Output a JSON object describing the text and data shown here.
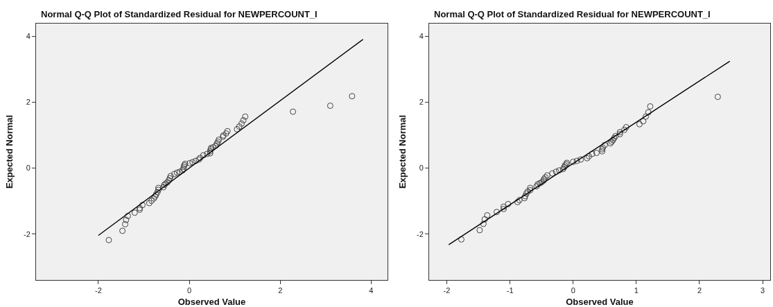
{
  "chart_data": [
    {
      "type": "scatter",
      "title": "Normal Q-Q Plot of Standardized Residual for NEWPERCOUNT_I",
      "xlabel": "Observed Value",
      "ylabel": "Expected Normal",
      "xlim": [
        -3.37,
        4.36
      ],
      "ylim": [
        -3.39,
        4.38
      ],
      "xticks": [
        -2,
        0,
        2,
        4
      ],
      "yticks": [
        -2,
        0,
        2,
        4
      ],
      "grid": false,
      "series": [
        {
          "marker": "circle",
          "color": "#444444",
          "x": [
            -1.77,
            -1.47,
            -1.41,
            -1.39,
            -1.35,
            -1.2,
            -1.09,
            -1.09,
            -1.03,
            -0.88,
            -0.83,
            -0.78,
            -0.75,
            -0.73,
            -0.7,
            -0.68,
            -0.68,
            -0.57,
            -0.55,
            -0.52,
            -0.48,
            -0.45,
            -0.43,
            -0.41,
            -0.33,
            -0.27,
            -0.21,
            -0.15,
            -0.13,
            -0.12,
            -0.11,
            -0.09,
            0.01,
            0.07,
            0.14,
            0.21,
            0.24,
            0.31,
            0.39,
            0.46,
            0.46,
            0.47,
            0.48,
            0.52,
            0.58,
            0.61,
            0.63,
            0.65,
            0.74,
            0.75,
            0.81,
            0.84,
            1.05,
            1.1,
            1.15,
            1.19,
            1.23,
            2.28,
            3.1,
            3.58
          ],
          "values": [
            -2.18,
            -1.9,
            -1.7,
            -1.57,
            -1.45,
            -1.35,
            -1.26,
            -1.21,
            -1.12,
            -1.06,
            -0.99,
            -0.92,
            -0.86,
            -0.8,
            -0.73,
            -0.66,
            -0.6,
            -0.58,
            -0.51,
            -0.47,
            -0.43,
            -0.37,
            -0.31,
            -0.24,
            -0.18,
            -0.14,
            -0.11,
            -0.07,
            -0.02,
            0.04,
            0.09,
            0.13,
            0.15,
            0.18,
            0.22,
            0.26,
            0.31,
            0.39,
            0.43,
            0.45,
            0.51,
            0.57,
            0.61,
            0.63,
            0.68,
            0.75,
            0.8,
            0.86,
            0.95,
            0.99,
            1.05,
            1.12,
            1.18,
            1.26,
            1.35,
            1.45,
            1.56,
            1.71,
            1.89,
            2.18
          ]
        },
        {
          "type": "line",
          "marker": "none",
          "color": "#000000",
          "x": [
            -2.0,
            3.82
          ],
          "values": [
            -2.04,
            3.9
          ]
        }
      ]
    },
    {
      "type": "scatter",
      "title": "Normal Q-Q Plot of Standardized Residual for NEWPERCOUNT_I",
      "xlabel": "Observed Value",
      "ylabel": "Expected Normal",
      "xlim": [
        -2.28,
        3.12
      ],
      "ylim": [
        -3.39,
        4.38
      ],
      "xticks": [
        -2,
        -1,
        0,
        1,
        2,
        3
      ],
      "yticks": [
        -2,
        0,
        2,
        4
      ],
      "grid": false,
      "series": [
        {
          "marker": "circle",
          "color": "#444444",
          "x": [
            -1.77,
            -1.48,
            -1.42,
            -1.4,
            -1.36,
            -1.21,
            -1.1,
            -1.1,
            -1.03,
            -0.88,
            -0.85,
            -0.77,
            -0.76,
            -0.74,
            -0.72,
            -0.68,
            -0.68,
            -0.58,
            -0.56,
            -0.53,
            -0.5,
            -0.47,
            -0.46,
            -0.44,
            -0.41,
            -0.33,
            -0.27,
            -0.22,
            -0.16,
            -0.14,
            -0.13,
            -0.11,
            -0.1,
            0.0,
            0.06,
            0.12,
            0.22,
            0.25,
            0.3,
            0.37,
            0.46,
            0.46,
            0.47,
            0.5,
            0.59,
            0.61,
            0.63,
            0.65,
            0.67,
            0.74,
            0.74,
            0.81,
            0.84,
            1.05,
            1.11,
            1.15,
            1.19,
            1.22,
            2.29
          ],
          "values": [
            -2.16,
            -1.88,
            -1.69,
            -1.55,
            -1.43,
            -1.33,
            -1.24,
            -1.17,
            -1.09,
            -1.03,
            -0.97,
            -0.91,
            -0.85,
            -0.77,
            -0.71,
            -0.67,
            -0.6,
            -0.55,
            -0.49,
            -0.46,
            -0.43,
            -0.38,
            -0.33,
            -0.28,
            -0.22,
            -0.16,
            -0.11,
            -0.07,
            -0.03,
            0.03,
            0.08,
            0.12,
            0.16,
            0.19,
            0.22,
            0.26,
            0.3,
            0.36,
            0.43,
            0.46,
            0.51,
            0.57,
            0.62,
            0.7,
            0.75,
            0.8,
            0.85,
            0.91,
            0.97,
            1.03,
            1.09,
            1.16,
            1.24,
            1.33,
            1.42,
            1.56,
            1.69,
            1.87,
            2.16
          ]
        },
        {
          "type": "line",
          "marker": "none",
          "color": "#000000",
          "x": [
            -1.97,
            2.48
          ],
          "values": [
            -2.32,
            3.24
          ]
        }
      ]
    }
  ]
}
